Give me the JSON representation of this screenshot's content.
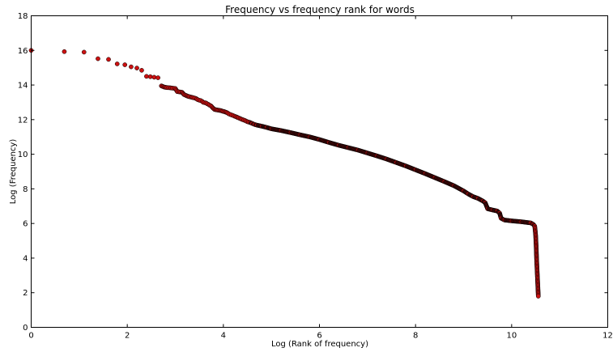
{
  "chart_data": {
    "type": "scatter",
    "title": "Frequency vs frequency rank for words",
    "xlabel": "Log (Rank of frequency)",
    "ylabel": "Log (Frequency)",
    "xlim": [
      0,
      12
    ],
    "ylim": [
      0,
      18
    ],
    "x_ticks": [
      0,
      2,
      4,
      6,
      8,
      10,
      12
    ],
    "y_ticks": [
      0,
      2,
      4,
      6,
      8,
      10,
      12,
      14,
      16,
      18
    ],
    "grid": false,
    "legend": "none",
    "marker_color": "#cc1111",
    "marker_edge_color": "#000000",
    "series": [
      {
        "points": [
          [
            0.0,
            16.0
          ],
          [
            0.69,
            15.93
          ],
          [
            1.1,
            15.9
          ],
          [
            1.39,
            15.52
          ],
          [
            1.61,
            15.48
          ],
          [
            1.79,
            15.22
          ],
          [
            1.95,
            15.17
          ],
          [
            2.08,
            15.05
          ],
          [
            2.2,
            14.98
          ],
          [
            2.3,
            14.85
          ],
          [
            2.4,
            14.5
          ],
          [
            2.48,
            14.48
          ],
          [
            2.56,
            14.45
          ],
          [
            2.64,
            14.42
          ],
          [
            2.71,
            13.95
          ],
          [
            2.77,
            13.88
          ],
          [
            2.83,
            13.85
          ],
          [
            2.89,
            13.84
          ],
          [
            2.94,
            13.82
          ],
          [
            3.0,
            13.8
          ],
          [
            3.04,
            13.62
          ],
          [
            3.09,
            13.6
          ],
          [
            3.14,
            13.58
          ],
          [
            3.18,
            13.45
          ],
          [
            3.22,
            13.4
          ],
          [
            3.26,
            13.35
          ],
          [
            3.3,
            13.32
          ],
          [
            3.33,
            13.3
          ],
          [
            3.37,
            13.27
          ],
          [
            3.4,
            13.25
          ],
          [
            3.43,
            13.22
          ],
          [
            3.47,
            13.15
          ],
          [
            3.5,
            13.12
          ],
          [
            3.53,
            13.1
          ],
          [
            3.56,
            13.05
          ],
          [
            3.58,
            13.0
          ],
          [
            3.61,
            12.98
          ],
          [
            3.64,
            12.96
          ],
          [
            3.66,
            12.92
          ],
          [
            3.69,
            12.88
          ],
          [
            3.71,
            12.84
          ],
          [
            3.74,
            12.8
          ],
          [
            3.76,
            12.74
          ],
          [
            3.78,
            12.68
          ],
          [
            3.81,
            12.6
          ],
          [
            3.83,
            12.58
          ],
          [
            3.85,
            12.57
          ],
          [
            3.87,
            12.56
          ],
          [
            3.89,
            12.55
          ],
          [
            3.91,
            12.54
          ],
          [
            3.93,
            12.53
          ],
          [
            3.95,
            12.52
          ],
          [
            3.97,
            12.5
          ],
          [
            3.99,
            12.48
          ],
          [
            4.01,
            12.47
          ],
          [
            4.03,
            12.45
          ],
          [
            4.05,
            12.43
          ],
          [
            4.07,
            12.41
          ],
          [
            4.09,
            12.38
          ],
          [
            4.11,
            12.34
          ],
          [
            4.14,
            12.3
          ],
          [
            4.17,
            12.27
          ],
          [
            4.2,
            12.24
          ],
          [
            4.23,
            12.2
          ],
          [
            4.26,
            12.17
          ],
          [
            4.3,
            12.12
          ],
          [
            4.35,
            12.06
          ],
          [
            4.4,
            12.0
          ],
          [
            4.45,
            11.95
          ],
          [
            4.5,
            11.88
          ],
          [
            4.55,
            11.84
          ],
          [
            4.6,
            11.78
          ],
          [
            4.65,
            11.72
          ],
          [
            4.7,
            11.68
          ],
          [
            4.8,
            11.62
          ],
          [
            4.9,
            11.55
          ],
          [
            5.0,
            11.47
          ],
          [
            5.2,
            11.37
          ],
          [
            5.4,
            11.25
          ],
          [
            5.6,
            11.12
          ],
          [
            5.8,
            11.0
          ],
          [
            6.0,
            10.85
          ],
          [
            6.2,
            10.68
          ],
          [
            6.4,
            10.52
          ],
          [
            6.6,
            10.38
          ],
          [
            6.8,
            10.24
          ],
          [
            7.0,
            10.07
          ],
          [
            7.2,
            9.9
          ],
          [
            7.4,
            9.72
          ],
          [
            7.6,
            9.52
          ],
          [
            7.8,
            9.32
          ],
          [
            8.0,
            9.1
          ],
          [
            8.2,
            8.88
          ],
          [
            8.4,
            8.65
          ],
          [
            8.6,
            8.42
          ],
          [
            8.8,
            8.18
          ],
          [
            9.0,
            7.88
          ],
          [
            9.1,
            7.7
          ],
          [
            9.2,
            7.55
          ],
          [
            9.3,
            7.45
          ],
          [
            9.4,
            7.3
          ],
          [
            9.45,
            7.2
          ],
          [
            9.5,
            6.85
          ],
          [
            9.6,
            6.78
          ],
          [
            9.7,
            6.72
          ],
          [
            9.75,
            6.6
          ],
          [
            9.78,
            6.3
          ],
          [
            9.85,
            6.2
          ],
          [
            10.0,
            6.15
          ],
          [
            10.2,
            6.1
          ],
          [
            10.4,
            6.03
          ],
          [
            10.45,
            5.95
          ],
          [
            10.48,
            5.85
          ],
          [
            10.49,
            5.6
          ],
          [
            10.5,
            5.3
          ],
          [
            10.505,
            5.0
          ],
          [
            10.51,
            4.7
          ],
          [
            10.515,
            4.3
          ],
          [
            10.52,
            3.9
          ],
          [
            10.525,
            3.6
          ],
          [
            10.53,
            3.3
          ],
          [
            10.535,
            3.0
          ],
          [
            10.54,
            2.7
          ],
          [
            10.545,
            2.4
          ],
          [
            10.55,
            2.1
          ],
          [
            10.555,
            1.8
          ]
        ]
      }
    ]
  }
}
